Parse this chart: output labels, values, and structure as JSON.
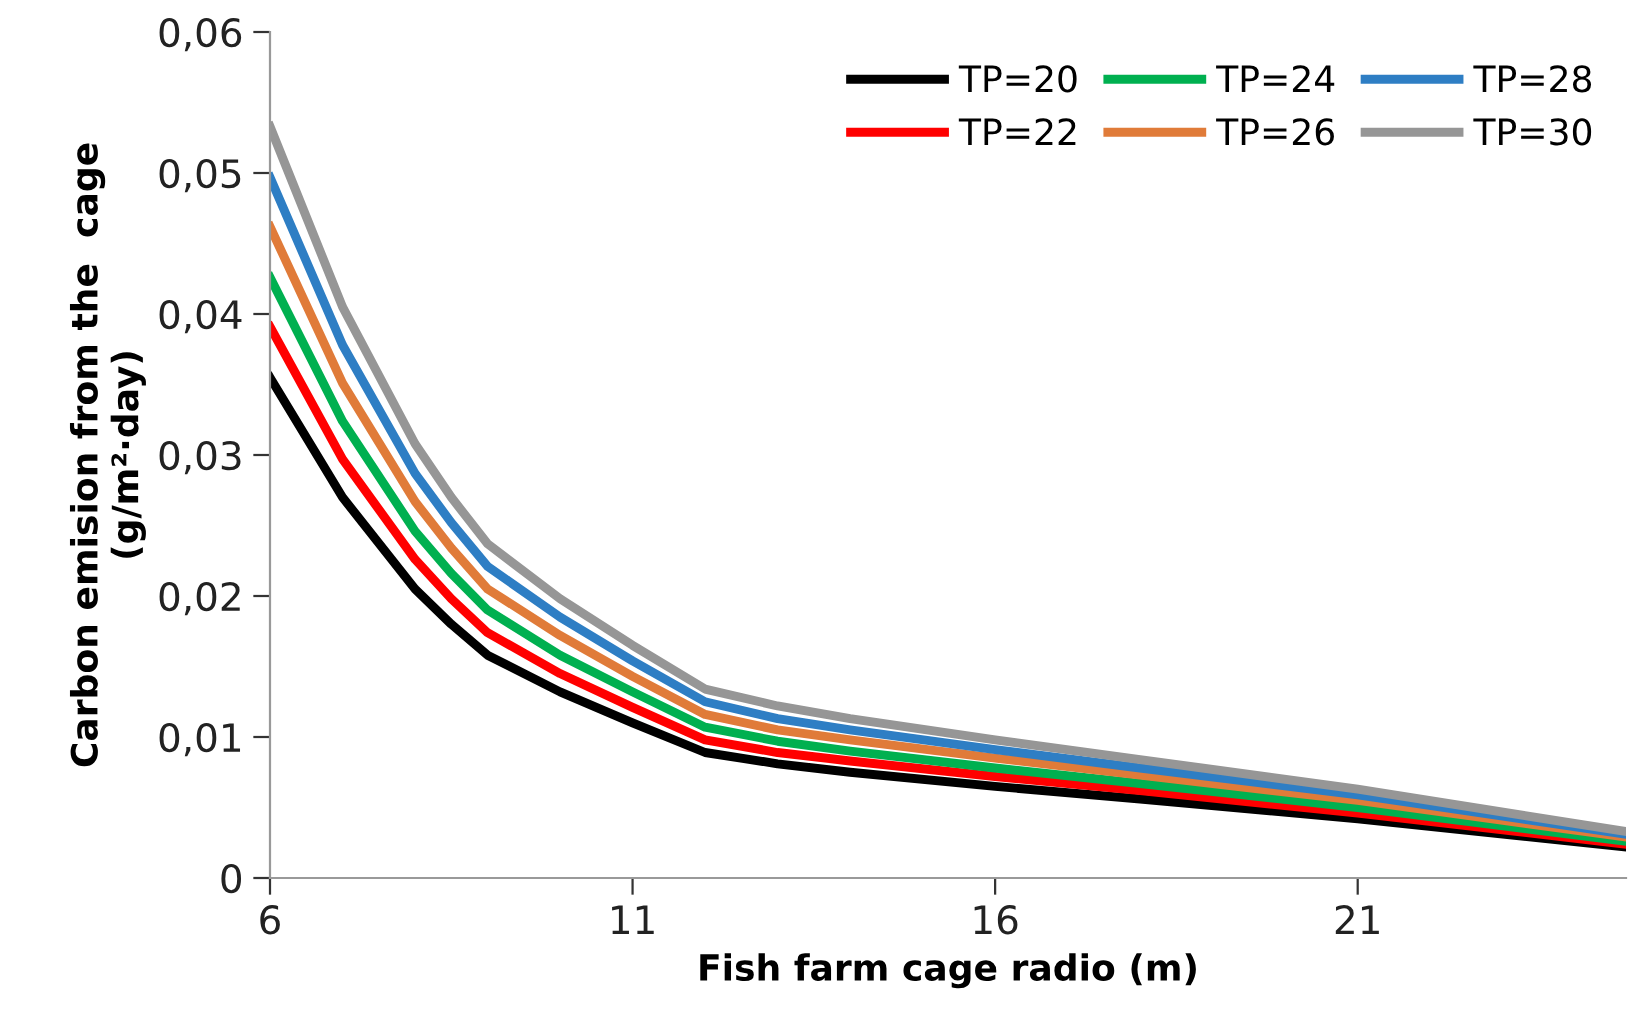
{
  "chart_data": {
    "type": "line",
    "xlabel": "Fish farm cage radio (m)",
    "ylabel": "Carbon emision from the  cage\n(g/m²·day)",
    "x": [
      6,
      7,
      8,
      8.5,
      9,
      10,
      11,
      12,
      13,
      14,
      16,
      18,
      21,
      24.7
    ],
    "series": [
      {
        "name": "TP=20",
        "color": "#000000",
        "values": [
          0.0355,
          0.027,
          0.0205,
          0.018,
          0.0158,
          0.0132,
          0.011,
          0.0089,
          0.0081,
          0.0075,
          0.0065,
          0.0056,
          0.0042,
          0.0022
        ]
      },
      {
        "name": "TP=22",
        "color": "#ff0000",
        "values": [
          0.0391,
          0.0297,
          0.0226,
          0.0198,
          0.0174,
          0.0145,
          0.0121,
          0.0098,
          0.0089,
          0.0083,
          0.0072,
          0.0062,
          0.0046,
          0.0024
        ]
      },
      {
        "name": "TP=24",
        "color": "#00b050",
        "values": [
          0.0426,
          0.0324,
          0.0246,
          0.0216,
          0.019,
          0.0158,
          0.0132,
          0.0107,
          0.0097,
          0.009,
          0.0078,
          0.0067,
          0.005,
          0.0026
        ]
      },
      {
        "name": "TP=26",
        "color": "#e07b39",
        "values": [
          0.0462,
          0.0351,
          0.0267,
          0.0234,
          0.0205,
          0.0172,
          0.0143,
          0.0116,
          0.0105,
          0.0098,
          0.0085,
          0.0073,
          0.0055,
          0.0029
        ]
      },
      {
        "name": "TP=28",
        "color": "#2e7ec4",
        "values": [
          0.0497,
          0.0378,
          0.0287,
          0.0252,
          0.0221,
          0.0185,
          0.0154,
          0.0125,
          0.0113,
          0.0105,
          0.0091,
          0.0078,
          0.0059,
          0.0031
        ]
      },
      {
        "name": "TP=30",
        "color": "#969696",
        "values": [
          0.0533,
          0.0405,
          0.0308,
          0.027,
          0.0237,
          0.0198,
          0.0165,
          0.0134,
          0.0122,
          0.0113,
          0.0098,
          0.0084,
          0.0063,
          0.0033
        ]
      }
    ],
    "xlim": [
      6,
      24.7
    ],
    "xticks": [
      6,
      11,
      16,
      21
    ],
    "ylim": [
      0,
      0.06
    ],
    "yticks": [
      0,
      {
        "value": 0.01,
        "label": "0,01"
      },
      {
        "value": 0.02,
        "label": "0,02"
      },
      {
        "value": 0.03,
        "label": "0,03"
      },
      {
        "value": 0.04,
        "label": "0,04"
      },
      {
        "value": 0.05,
        "label": "0,05"
      },
      {
        "value": 0.06,
        "label": "0,06"
      }
    ],
    "grid": false,
    "legend": "top right",
    "marker": "none",
    "line_style": "solid"
  }
}
